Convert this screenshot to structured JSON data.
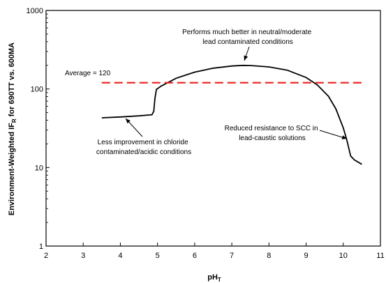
{
  "chart_data": {
    "type": "line",
    "title": "",
    "xlabel": "pH",
    "xlabel_sub": "T",
    "ylabel": "Environment-Weighted IF",
    "ylabel_sub": "R",
    "ylabel_suffix": " for 690TT vs. 600MA",
    "xlim": [
      2,
      11
    ],
    "ylim": [
      1,
      1000
    ],
    "yscale": "log",
    "grid": false,
    "legend": "none",
    "x_ticks": [
      "2",
      "3",
      "4",
      "5",
      "6",
      "7",
      "8",
      "9",
      "10",
      "11"
    ],
    "y_ticks": [
      "1",
      "10",
      "100",
      "1000"
    ],
    "series": [
      {
        "color": "#000000",
        "style": "solid",
        "points": [
          [
            3.5,
            43
          ],
          [
            4.0,
            44
          ],
          [
            4.5,
            45.5
          ],
          [
            4.85,
            47
          ],
          [
            4.9,
            52
          ],
          [
            4.93,
            75
          ],
          [
            4.97,
            99
          ],
          [
            5.1,
            109
          ],
          [
            5.5,
            137
          ],
          [
            6.0,
            164
          ],
          [
            6.5,
            184
          ],
          [
            7.0,
            196
          ],
          [
            7.3,
            200
          ],
          [
            7.5,
            199
          ],
          [
            8.0,
            191
          ],
          [
            8.5,
            173
          ],
          [
            9.0,
            140
          ],
          [
            9.3,
            113
          ],
          [
            9.6,
            81
          ],
          [
            9.8,
            56
          ],
          [
            10.0,
            32
          ],
          [
            10.1,
            22
          ],
          [
            10.2,
            14
          ],
          [
            10.3,
            12.5
          ],
          [
            10.5,
            11
          ]
        ]
      },
      {
        "color": "#e8201a",
        "style": "dashed",
        "points": [
          [
            3.5,
            120
          ],
          [
            10.5,
            120
          ]
        ]
      }
    ],
    "annotations": [
      {
        "text": "Average = 120"
      },
      {
        "lines": [
          "Performs much better in neutral/moderate",
          "lead contaminated conditions"
        ]
      },
      {
        "lines": [
          "Less improvement in chloride",
          "contaminated/acidic conditions"
        ]
      },
      {
        "lines": [
          "Reduced resistance to SCC in",
          "lead-caustic solutions"
        ]
      }
    ]
  }
}
